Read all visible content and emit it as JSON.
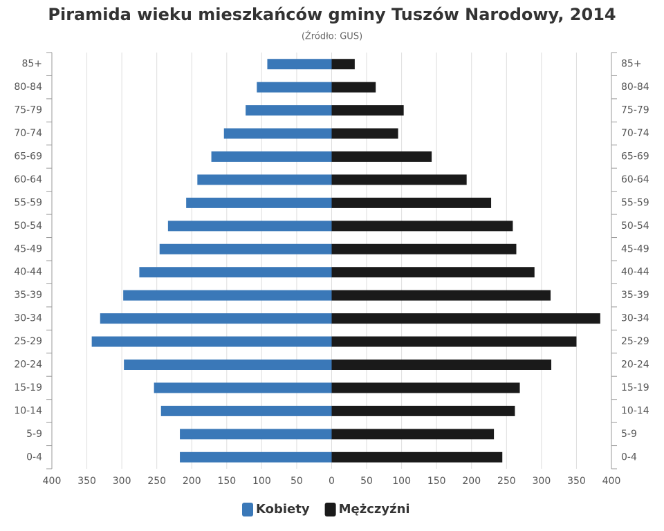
{
  "chart_data": {
    "type": "bar",
    "orientation": "horizontal",
    "title": "Piramida wieku mieszkańców gminy Tuszów Narodowy, 2014",
    "subtitle": "(Źródło: GUS)",
    "categories": [
      "0-4",
      "5-9",
      "10-14",
      "15-19",
      "20-24",
      "25-29",
      "30-34",
      "35-39",
      "40-44",
      "45-49",
      "50-54",
      "55-59",
      "60-64",
      "65-69",
      "70-74",
      "75-79",
      "80-84",
      "85+"
    ],
    "series": [
      {
        "name": "Kobiety",
        "color": "#3a78b8",
        "values": [
          -217,
          -217,
          -244,
          -254,
          -297,
          -343,
          -331,
          -298,
          -275,
          -246,
          -234,
          -208,
          -192,
          -172,
          -154,
          -123,
          -107,
          -92
        ]
      },
      {
        "name": "Mężczyźni",
        "color": "#1a1a1a",
        "values": [
          244,
          232,
          262,
          269,
          314,
          350,
          384,
          313,
          290,
          264,
          259,
          228,
          193,
          143,
          95,
          103,
          63,
          33
        ]
      }
    ],
    "xlim": [
      -400,
      400
    ],
    "xticks": [
      {
        "value": -400,
        "label": "400"
      },
      {
        "value": -350,
        "label": "350"
      },
      {
        "value": -300,
        "label": "300"
      },
      {
        "value": -250,
        "label": "250"
      },
      {
        "value": -200,
        "label": "200"
      },
      {
        "value": -150,
        "label": "150"
      },
      {
        "value": -100,
        "label": "100"
      },
      {
        "value": -50,
        "label": "50"
      },
      0,
      50,
      100,
      150,
      200,
      250,
      300,
      350,
      400
    ],
    "grid": true,
    "legend": "bottom"
  }
}
